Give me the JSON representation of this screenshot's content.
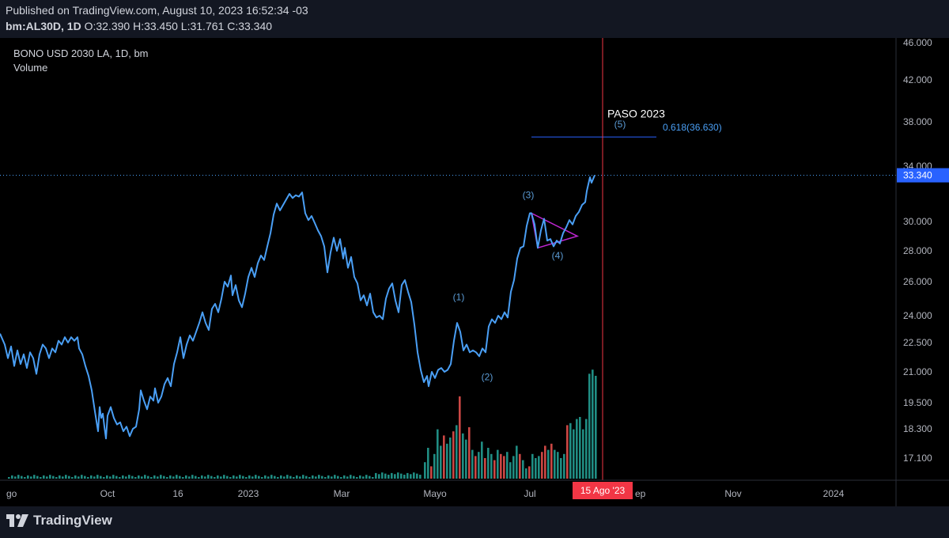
{
  "header": {
    "published": "Published on TradingView.com, August 10, 2023 16:52:34 -03",
    "symbol": "bm:AL30D, 1D",
    "open_label": "O:",
    "open": "32.390",
    "high_label": "H:",
    "high": "33.450",
    "low_label": "L:",
    "low": "31.761",
    "close_label": "C:",
    "close": "33.340"
  },
  "legend": {
    "title": "BONO USD 2030 LA, 1D, bm",
    "volume": "Volume"
  },
  "colors": {
    "price_line": "#4a9ff5",
    "volume_up": "#26a69a",
    "volume_down": "#ef5350",
    "triangle": "#c026d3",
    "cursor_line": "#f23645",
    "last_price_bg": "#2962ff",
    "fib_line": "#2962ff"
  },
  "footer": {
    "brand": "TradingView",
    "brand_icon": "tradingview-logo-icon"
  },
  "chart_data": {
    "type": "line",
    "series": [
      {
        "values": [
          [
            0,
            23.0
          ],
          [
            6,
            22.4
          ],
          [
            10,
            21.7
          ],
          [
            14,
            22.3
          ],
          [
            18,
            21.3
          ],
          [
            22,
            22.1
          ],
          [
            26,
            21.4
          ],
          [
            30,
            21.9
          ],
          [
            34,
            21.2
          ],
          [
            38,
            22.0
          ],
          [
            42,
            21.7
          ],
          [
            46,
            20.9
          ],
          [
            50,
            21.9
          ],
          [
            54,
            22.4
          ],
          [
            58,
            22.2
          ],
          [
            62,
            21.7
          ],
          [
            66,
            22.2
          ],
          [
            70,
            22.0
          ],
          [
            74,
            22.6
          ],
          [
            78,
            22.4
          ],
          [
            82,
            22.8
          ],
          [
            86,
            22.5
          ],
          [
            90,
            22.8
          ],
          [
            94,
            22.6
          ],
          [
            98,
            22.8
          ],
          [
            100,
            22.2
          ],
          [
            104,
            21.9
          ],
          [
            108,
            21.3
          ],
          [
            112,
            20.8
          ],
          [
            116,
            20.1
          ],
          [
            120,
            19.1
          ],
          [
            124,
            18.2
          ],
          [
            126,
            19.3
          ],
          [
            128,
            18.8
          ],
          [
            130,
            19.0
          ],
          [
            132,
            18.4
          ],
          [
            134,
            17.9
          ],
          [
            136,
            18.9
          ],
          [
            140,
            19.3
          ],
          [
            144,
            18.8
          ],
          [
            148,
            18.5
          ],
          [
            152,
            18.6
          ],
          [
            156,
            18.2
          ],
          [
            160,
            18.4
          ],
          [
            164,
            18.0
          ],
          [
            168,
            18.3
          ],
          [
            172,
            18.4
          ],
          [
            176,
            19.2
          ],
          [
            178,
            20.1
          ],
          [
            182,
            19.6
          ],
          [
            186,
            19.2
          ],
          [
            190,
            19.8
          ],
          [
            194,
            19.6
          ],
          [
            196,
            20.2
          ],
          [
            200,
            19.5
          ],
          [
            204,
            19.8
          ],
          [
            208,
            20.4
          ],
          [
            212,
            20.7
          ],
          [
            216,
            20.3
          ],
          [
            220,
            21.4
          ],
          [
            224,
            22.0
          ],
          [
            228,
            22.8
          ],
          [
            232,
            21.7
          ],
          [
            236,
            22.4
          ],
          [
            240,
            22.9
          ],
          [
            244,
            22.6
          ],
          [
            248,
            23.1
          ],
          [
            252,
            23.6
          ],
          [
            256,
            24.2
          ],
          [
            260,
            23.6
          ],
          [
            264,
            23.2
          ],
          [
            268,
            24.4
          ],
          [
            272,
            24.7
          ],
          [
            276,
            24.2
          ],
          [
            280,
            25.0
          ],
          [
            284,
            26.0
          ],
          [
            288,
            25.7
          ],
          [
            292,
            26.4
          ],
          [
            294,
            25.2
          ],
          [
            298,
            25.8
          ],
          [
            302,
            24.9
          ],
          [
            306,
            24.5
          ],
          [
            310,
            25.3
          ],
          [
            314,
            26.3
          ],
          [
            318,
            26.9
          ],
          [
            322,
            26.3
          ],
          [
            326,
            27.2
          ],
          [
            330,
            27.7
          ],
          [
            334,
            27.4
          ],
          [
            338,
            28.3
          ],
          [
            342,
            29.2
          ],
          [
            346,
            30.5
          ],
          [
            350,
            31.3
          ],
          [
            354,
            30.8
          ],
          [
            358,
            31.2
          ],
          [
            362,
            31.6
          ],
          [
            366,
            32.0
          ],
          [
            370,
            31.7
          ],
          [
            374,
            31.9
          ],
          [
            378,
            31.8
          ],
          [
            382,
            32.1
          ],
          [
            386,
            30.6
          ],
          [
            390,
            30.1
          ],
          [
            394,
            30.4
          ],
          [
            398,
            29.9
          ],
          [
            402,
            29.4
          ],
          [
            406,
            29.0
          ],
          [
            410,
            28.3
          ],
          [
            414,
            26.6
          ],
          [
            418,
            27.9
          ],
          [
            422,
            28.9
          ],
          [
            426,
            28.0
          ],
          [
            430,
            28.8
          ],
          [
            434,
            27.5
          ],
          [
            436,
            28.2
          ],
          [
            440,
            26.9
          ],
          [
            444,
            27.6
          ],
          [
            448,
            26.3
          ],
          [
            452,
            25.9
          ],
          [
            456,
            24.9
          ],
          [
            460,
            25.2
          ],
          [
            464,
            24.6
          ],
          [
            468,
            25.3
          ],
          [
            472,
            24.2
          ],
          [
            476,
            23.9
          ],
          [
            480,
            24.0
          ],
          [
            484,
            23.8
          ],
          [
            488,
            25.0
          ],
          [
            492,
            25.6
          ],
          [
            496,
            25.9
          ],
          [
            500,
            24.9
          ],
          [
            504,
            24.2
          ],
          [
            508,
            25.8
          ],
          [
            512,
            26.1
          ],
          [
            516,
            25.4
          ],
          [
            520,
            24.8
          ],
          [
            524,
            23.5
          ],
          [
            528,
            22.0
          ],
          [
            532,
            21.1
          ],
          [
            536,
            20.5
          ],
          [
            540,
            20.8
          ],
          [
            542,
            20.3
          ],
          [
            546,
            21.0
          ],
          [
            550,
            20.7
          ],
          [
            554,
            21.1
          ],
          [
            558,
            21.2
          ],
          [
            562,
            21.0
          ],
          [
            566,
            21.1
          ],
          [
            570,
            21.4
          ],
          [
            574,
            22.6
          ],
          [
            578,
            23.6
          ],
          [
            582,
            23.1
          ],
          [
            586,
            22.1
          ],
          [
            590,
            22.4
          ],
          [
            594,
            22.0
          ],
          [
            598,
            22.1
          ],
          [
            602,
            22.0
          ],
          [
            606,
            21.8
          ],
          [
            610,
            22.2
          ],
          [
            614,
            22.0
          ],
          [
            618,
            23.4
          ],
          [
            622,
            23.8
          ],
          [
            626,
            23.6
          ],
          [
            630,
            24.0
          ],
          [
            634,
            23.8
          ],
          [
            638,
            24.2
          ],
          [
            642,
            23.9
          ],
          [
            646,
            25.4
          ],
          [
            650,
            26.1
          ],
          [
            654,
            27.5
          ],
          [
            658,
            28.2
          ],
          [
            662,
            28.3
          ],
          [
            666,
            29.7
          ],
          [
            670,
            30.6
          ],
          [
            672,
            30.6
          ],
          [
            676,
            29.8
          ],
          [
            680,
            28.2
          ],
          [
            684,
            29.4
          ],
          [
            688,
            30.2
          ],
          [
            692,
            28.7
          ],
          [
            696,
            28.8
          ],
          [
            700,
            28.3
          ],
          [
            704,
            28.7
          ],
          [
            708,
            28.5
          ],
          [
            712,
            29.2
          ],
          [
            716,
            29.6
          ],
          [
            720,
            30.1
          ],
          [
            724,
            29.8
          ],
          [
            728,
            30.4
          ],
          [
            732,
            30.7
          ],
          [
            736,
            31.2
          ],
          [
            740,
            31.4
          ],
          [
            742,
            32.2
          ],
          [
            746,
            33.2
          ],
          [
            748,
            32.8
          ],
          [
            752,
            33.34
          ]
        ]
      }
    ],
    "volume": [
      {
        "x": 536,
        "v": 0.8,
        "c": "g"
      },
      {
        "x": 540,
        "v": 1.5,
        "c": "g"
      },
      {
        "x": 544,
        "v": 0.6,
        "c": "r"
      },
      {
        "x": 548,
        "v": 1.2,
        "c": "g"
      },
      {
        "x": 552,
        "v": 2.4,
        "c": "g"
      },
      {
        "x": 556,
        "v": 1.6,
        "c": "g"
      },
      {
        "x": 560,
        "v": 2.1,
        "c": "r"
      },
      {
        "x": 564,
        "v": 1.7,
        "c": "g"
      },
      {
        "x": 568,
        "v": 2.0,
        "c": "g"
      },
      {
        "x": 572,
        "v": 2.3,
        "c": "r"
      },
      {
        "x": 576,
        "v": 2.6,
        "c": "g"
      },
      {
        "x": 580,
        "v": 4.0,
        "c": "r"
      },
      {
        "x": 584,
        "v": 2.2,
        "c": "g"
      },
      {
        "x": 588,
        "v": 1.9,
        "c": "g"
      },
      {
        "x": 592,
        "v": 2.5,
        "c": "r"
      },
      {
        "x": 596,
        "v": 1.4,
        "c": "g"
      },
      {
        "x": 600,
        "v": 1.1,
        "c": "r"
      },
      {
        "x": 604,
        "v": 1.3,
        "c": "g"
      },
      {
        "x": 608,
        "v": 1.8,
        "c": "g"
      },
      {
        "x": 612,
        "v": 1.0,
        "c": "r"
      },
      {
        "x": 616,
        "v": 1.5,
        "c": "g"
      },
      {
        "x": 620,
        "v": 1.2,
        "c": "g"
      },
      {
        "x": 624,
        "v": 0.9,
        "c": "r"
      },
      {
        "x": 628,
        "v": 1.4,
        "c": "g"
      },
      {
        "x": 632,
        "v": 1.2,
        "c": "r"
      },
      {
        "x": 636,
        "v": 1.1,
        "c": "r"
      },
      {
        "x": 640,
        "v": 1.3,
        "c": "g"
      },
      {
        "x": 644,
        "v": 0.8,
        "c": "g"
      },
      {
        "x": 648,
        "v": 1.1,
        "c": "g"
      },
      {
        "x": 652,
        "v": 1.6,
        "c": "g"
      },
      {
        "x": 656,
        "v": 1.2,
        "c": "r"
      },
      {
        "x": 660,
        "v": 0.9,
        "c": "g"
      },
      {
        "x": 664,
        "v": 0.5,
        "c": "g"
      },
      {
        "x": 668,
        "v": 0.6,
        "c": "r"
      },
      {
        "x": 672,
        "v": 1.2,
        "c": "g"
      },
      {
        "x": 676,
        "v": 1.0,
        "c": "g"
      },
      {
        "x": 680,
        "v": 1.1,
        "c": "g"
      },
      {
        "x": 684,
        "v": 1.3,
        "c": "r"
      },
      {
        "x": 688,
        "v": 1.6,
        "c": "r"
      },
      {
        "x": 692,
        "v": 1.4,
        "c": "g"
      },
      {
        "x": 696,
        "v": 1.7,
        "c": "r"
      },
      {
        "x": 700,
        "v": 1.4,
        "c": "g"
      },
      {
        "x": 704,
        "v": 1.3,
        "c": "g"
      },
      {
        "x": 708,
        "v": 1.0,
        "c": "g"
      },
      {
        "x": 712,
        "v": 1.2,
        "c": "g"
      },
      {
        "x": 716,
        "v": 2.6,
        "c": "r"
      },
      {
        "x": 720,
        "v": 2.7,
        "c": "g"
      },
      {
        "x": 724,
        "v": 2.4,
        "c": "g"
      },
      {
        "x": 728,
        "v": 2.9,
        "c": "g"
      },
      {
        "x": 732,
        "v": 3.0,
        "c": "g"
      },
      {
        "x": 736,
        "v": 2.4,
        "c": "g"
      },
      {
        "x": 740,
        "v": 2.9,
        "c": "g"
      },
      {
        "x": 744,
        "v": 5.1,
        "c": "g"
      },
      {
        "x": 748,
        "v": 5.3,
        "c": "g"
      },
      {
        "x": 752,
        "v": 5.0,
        "c": "g"
      }
    ],
    "y_axis_ticks": [
      "46.000",
      "42.000",
      "38.000",
      "34.000",
      "30.000",
      "28.000",
      "26.000",
      "24.000",
      "22.500",
      "21.000",
      "19.500",
      "18.300",
      "17.100"
    ],
    "y_axis_tick_values": [
      46.0,
      42.0,
      38.0,
      34.0,
      30.0,
      28.0,
      26.0,
      24.0,
      22.5,
      21.0,
      19.5,
      18.3,
      17.1
    ],
    "x_axis_ticks": [
      {
        "label": "go",
        "x": 8
      },
      {
        "label": "Oct",
        "x": 136
      },
      {
        "label": "16",
        "x": 225
      },
      {
        "label": "2023",
        "x": 314
      },
      {
        "label": "Mar",
        "x": 432
      },
      {
        "label": "Mayo",
        "x": 550
      },
      {
        "label": "Jul",
        "x": 670
      },
      {
        "label": "ep",
        "x": 803
      },
      {
        "label": "Nov",
        "x": 927
      },
      {
        "label": "2024",
        "x": 1054
      }
    ],
    "last_price": "33.340",
    "last_price_value": 33.34,
    "cursor_date": "15 Ago '23",
    "cursor_x": 762,
    "annotations": [
      {
        "text": "(1)",
        "x": 580,
        "y": 24.9
      },
      {
        "text": "(2)",
        "x": 616,
        "y": 20.6
      },
      {
        "text": "(3)",
        "x": 668,
        "y": 31.7
      },
      {
        "text": "(4)",
        "x": 705,
        "y": 27.5
      },
      {
        "text": "(5)",
        "x": 784,
        "y": 37.5
      },
      {
        "text": "PASO 2023",
        "x": 768,
        "y": 38.4
      },
      {
        "text": "0.618(36.630)",
        "x": 838,
        "y": 37.2
      }
    ],
    "fib_level": {
      "value": 36.63,
      "x1": 672,
      "x2": 830
    },
    "triangle": [
      [
        672,
        30.6
      ],
      [
        730,
        29.0
      ],
      [
        680,
        28.2
      ]
    ]
  }
}
